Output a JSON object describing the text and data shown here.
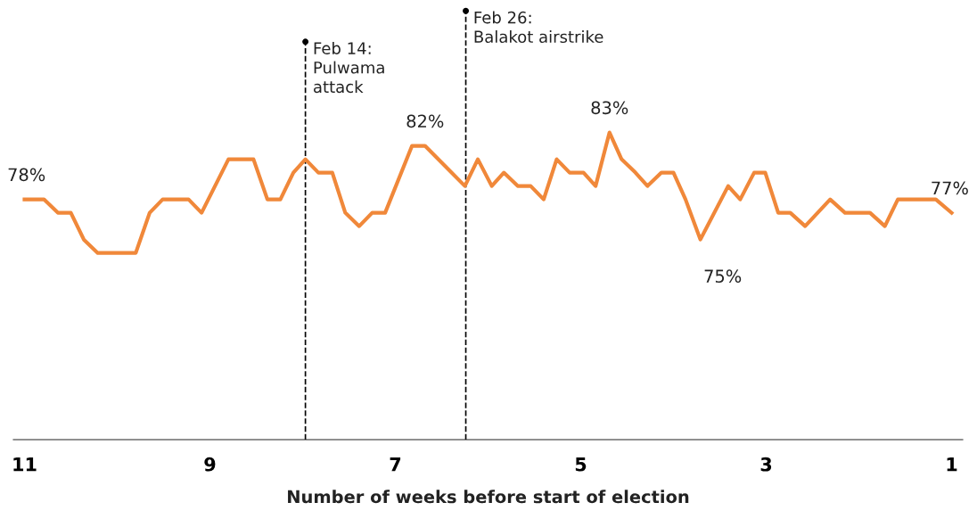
{
  "chart_data": {
    "type": "line",
    "xlabel": "Number of weeks before start of election",
    "x": [
      11,
      10.91,
      10.79,
      10.64,
      10.5,
      10.36,
      10.21,
      9.8,
      9.65,
      9.51,
      9.23,
      9.09,
      8.8,
      8.53,
      8.38,
      8.24,
      8.1,
      7.97,
      7.83,
      7.68,
      7.54,
      7.39,
      7.25,
      7.11,
      6.82,
      6.68,
      6.25,
      6.11,
      5.96,
      5.83,
      5.68,
      5.54,
      5.4,
      5.26,
      5.12,
      4.97,
      4.84,
      4.69,
      4.56,
      4.41,
      4.28,
      4.13,
      4.0,
      3.87,
      3.71,
      3.41,
      3.28,
      3.13,
      3.01,
      2.87,
      2.74,
      2.58,
      2.31,
      2.15,
      1.88,
      1.72,
      1.58,
      1.17,
      1
    ],
    "series": [
      {
        "color": "#f0883a",
        "values": [
          78,
          78,
          78,
          77,
          77,
          75,
          74,
          74,
          77,
          78,
          78,
          77,
          81,
          81,
          78,
          78,
          80,
          81,
          80,
          80,
          77,
          76,
          77,
          77,
          82,
          82,
          79,
          81,
          79,
          80,
          79,
          79,
          78,
          81,
          80,
          80,
          79,
          83,
          81,
          80,
          79,
          80,
          80,
          78,
          75,
          79,
          78,
          80,
          80,
          77,
          77,
          76,
          78,
          77,
          77,
          76,
          78,
          78,
          77
        ],
        "value_labels": [
          "78%",
          null,
          null,
          null,
          null,
          null,
          null,
          null,
          null,
          null,
          null,
          null,
          null,
          null,
          null,
          null,
          null,
          null,
          null,
          null,
          null,
          null,
          null,
          null,
          null,
          "82%",
          null,
          null,
          null,
          null,
          null,
          null,
          null,
          null,
          null,
          null,
          null,
          "83%",
          null,
          null,
          null,
          null,
          null,
          null,
          "75%",
          null,
          null,
          null,
          null,
          null,
          null,
          null,
          null,
          null,
          null,
          null,
          null,
          null,
          "77%"
        ]
      }
    ],
    "xlim": [
      11.12,
      0.88
    ],
    "xticks": [
      11,
      9,
      7,
      5,
      3,
      1
    ],
    "tick_labels": "x",
    "grid": false,
    "marker": "none",
    "line_style": "solid",
    "ref_lines": [
      {
        "axis": "x",
        "value": 7.97,
        "label": "Feb 14:\nPulwama\nattack",
        "color": "#000000",
        "line_style": "dashed"
      },
      {
        "axis": "x",
        "value": 6.24,
        "label": "Feb 26:\nBalakot airstrike",
        "color": "#000000",
        "line_style": "dashed"
      }
    ]
  }
}
